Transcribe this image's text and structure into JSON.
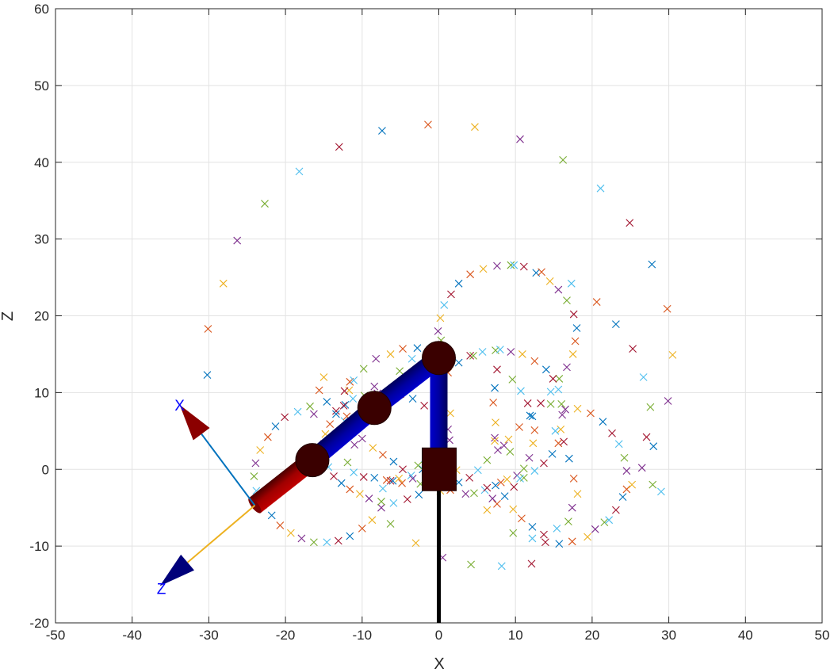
{
  "chart_data": {
    "type": "scatter",
    "title": "",
    "xlabel": "X",
    "ylabel": "Z",
    "xlim": [
      -50,
      50
    ],
    "ylim": [
      -20,
      60
    ],
    "xticks": [
      -50,
      -40,
      -30,
      -20,
      -10,
      0,
      10,
      20,
      30,
      40,
      50
    ],
    "yticks": [
      -20,
      -10,
      0,
      10,
      20,
      30,
      40,
      50,
      60
    ],
    "grid": true,
    "marker_colors": [
      "#0072bd",
      "#d95319",
      "#edb120",
      "#7e2f8e",
      "#77ac30",
      "#4dbeee",
      "#a2142f"
    ],
    "points": [
      [
        -30.2,
        12.3
      ],
      [
        -30.1,
        18.3
      ],
      [
        -28.1,
        24.2
      ],
      [
        -26.3,
        29.8
      ],
      [
        -22.7,
        34.6
      ],
      [
        -18.2,
        38.8
      ],
      [
        -13.0,
        42.0
      ],
      [
        -7.4,
        44.1
      ],
      [
        -1.4,
        44.9
      ],
      [
        4.7,
        44.6
      ],
      [
        10.6,
        43.0
      ],
      [
        16.2,
        40.3
      ],
      [
        21.1,
        36.6
      ],
      [
        24.9,
        32.1
      ],
      [
        27.8,
        26.7
      ],
      [
        29.8,
        20.9
      ],
      [
        30.5,
        14.9
      ],
      [
        29.9,
        8.9
      ],
      [
        27.6,
        8.1
      ],
      [
        26.7,
        12.0
      ],
      [
        25.3,
        15.7
      ],
      [
        23.1,
        18.9
      ],
      [
        20.6,
        21.8
      ],
      [
        0.2,
        19.7
      ],
      [
        -0.1,
        18.0
      ],
      [
        0.3,
        16.8
      ],
      [
        0.7,
        21.4
      ],
      [
        1.6,
        22.8
      ],
      [
        2.6,
        24.2
      ],
      [
        4.1,
        25.4
      ],
      [
        5.8,
        26.1
      ],
      [
        7.6,
        26.5
      ],
      [
        9.4,
        26.6
      ],
      [
        9.8,
        26.6
      ],
      [
        11.1,
        26.4
      ],
      [
        12.7,
        25.6
      ],
      [
        13.4,
        25.7
      ],
      [
        14.5,
        24.5
      ],
      [
        15.6,
        23.4
      ],
      [
        16.7,
        22.0
      ],
      [
        17.3,
        24.2
      ],
      [
        17.6,
        20.2
      ],
      [
        18.0,
        18.4
      ],
      [
        17.8,
        16.7
      ],
      [
        17.5,
        15.0
      ],
      [
        16.7,
        13.3
      ],
      [
        15.7,
        11.8
      ],
      [
        14.6,
        10.1
      ],
      [
        13.3,
        8.6
      ],
      [
        11.9,
        7.0
      ],
      [
        10.5,
        5.5
      ],
      [
        9.1,
        3.9
      ],
      [
        7.7,
        2.5
      ],
      [
        6.3,
        1.2
      ],
      [
        5.1,
        -0.1
      ],
      [
        4.0,
        -1.1
      ],
      [
        2.6,
        -1.7
      ],
      [
        1.5,
        -2.7
      ],
      [
        0.2,
        -2.8
      ],
      [
        -1.3,
        -1.9
      ],
      [
        -2.4,
        -1.9
      ],
      [
        -3.6,
        -0.8
      ],
      [
        -4.7,
        0.0
      ],
      [
        -5.9,
        1.0
      ],
      [
        -7.3,
        1.9
      ],
      [
        -8.6,
        2.8
      ],
      [
        -10.0,
        4.0
      ],
      [
        -11.2,
        5.1
      ],
      [
        -12.3,
        6.3
      ],
      [
        -13.4,
        7.6
      ],
      [
        -14.6,
        8.8
      ],
      [
        -15.6,
        10.3
      ],
      [
        -15.0,
        12.0
      ],
      [
        -16.3,
        7.2
      ],
      [
        -16.8,
        8.2
      ],
      [
        -18.4,
        7.5
      ],
      [
        -20.1,
        6.8
      ],
      [
        -21.3,
        5.6
      ],
      [
        -22.3,
        4.2
      ],
      [
        -23.3,
        2.5
      ],
      [
        -23.9,
        0.8
      ],
      [
        -24.1,
        -0.9
      ],
      [
        -23.8,
        -2.8
      ],
      [
        -22.9,
        -4.6
      ],
      [
        -21.8,
        -6.0
      ],
      [
        -20.7,
        -7.3
      ],
      [
        -19.3,
        -8.3
      ],
      [
        -17.9,
        -9.0
      ],
      [
        -16.3,
        -9.5
      ],
      [
        -14.6,
        -9.5
      ],
      [
        -13.1,
        -9.3
      ],
      [
        -11.6,
        -8.7
      ],
      [
        -10.0,
        -7.7
      ],
      [
        -8.7,
        -6.6
      ],
      [
        -7.5,
        -5.0
      ],
      [
        -6.3,
        -7.1
      ],
      [
        -7.3,
        -2.5
      ],
      [
        -6.3,
        -1.5
      ],
      [
        -6.0,
        -1.5
      ],
      [
        -4.8,
        -1.8
      ],
      [
        -3.0,
        -9.6
      ],
      [
        0.5,
        -11.5
      ],
      [
        4.2,
        -12.4
      ],
      [
        8.2,
        -12.6
      ],
      [
        12.1,
        -12.3
      ],
      [
        -2.1,
        0.0
      ],
      [
        -1.6,
        -0.5
      ],
      [
        2.3,
        -0.1
      ],
      [
        3.5,
        -3.2
      ],
      [
        4.6,
        -3.1
      ],
      [
        6.0,
        -2.7
      ],
      [
        6.3,
        -2.4
      ],
      [
        7.4,
        -2.1
      ],
      [
        8.1,
        -1.7
      ],
      [
        8.9,
        -1.3
      ],
      [
        10.2,
        -0.8
      ],
      [
        11.1,
        -1.1
      ],
      [
        12.5,
        -0.2
      ],
      [
        13.7,
        0.8
      ],
      [
        14.8,
        2.0
      ],
      [
        15.6,
        3.4
      ],
      [
        15.9,
        5.2
      ],
      [
        16.1,
        7.1
      ],
      [
        16.0,
        8.5
      ],
      [
        15.6,
        10.4
      ],
      [
        14.9,
        11.8
      ],
      [
        14.0,
        13.0
      ],
      [
        12.5,
        14.1
      ],
      [
        10.9,
        15.0
      ],
      [
        9.4,
        15.3
      ],
      [
        7.4,
        15.5
      ],
      [
        5.7,
        15.3
      ],
      [
        4.1,
        14.8
      ],
      [
        2.6,
        13.9
      ],
      [
        1.2,
        12.6
      ],
      [
        1.5,
        7.3
      ],
      [
        1.2,
        5.2
      ],
      [
        4.5,
        14.8
      ],
      [
        8.0,
        15.6
      ],
      [
        7.6,
        13.0
      ],
      [
        7.3,
        10.6
      ],
      [
        7.1,
        8.7
      ],
      [
        7.4,
        6.1
      ],
      [
        7.3,
        4.1
      ],
      [
        9.6,
        11.7
      ],
      [
        10.7,
        10.2
      ],
      [
        11.6,
        8.6
      ],
      [
        12.2,
        6.9
      ],
      [
        12.5,
        5.1
      ],
      [
        12.3,
        3.4
      ],
      [
        11.8,
        1.5
      ],
      [
        11.1,
        0.1
      ],
      [
        10.6,
        -1.2
      ],
      [
        9.8,
        -2.3
      ],
      [
        8.6,
        -3.5
      ],
      [
        7.6,
        -4.5
      ],
      [
        6.3,
        -5.3
      ],
      [
        7.0,
        -3.8
      ],
      [
        9.7,
        -8.3
      ],
      [
        12.2,
        -9.0
      ],
      [
        13.9,
        -9.5
      ],
      [
        15.7,
        -9.7
      ],
      [
        17.4,
        -9.4
      ],
      [
        19.4,
        -8.8
      ],
      [
        20.4,
        -7.8
      ],
      [
        21.6,
        -6.9
      ],
      [
        22.2,
        -6.6
      ],
      [
        23.1,
        -5.3
      ],
      [
        24.0,
        -3.6
      ],
      [
        24.5,
        -2.6
      ],
      [
        25.2,
        -2.0
      ],
      [
        24.5,
        -0.2
      ],
      [
        24.2,
        1.5
      ],
      [
        23.5,
        3.3
      ],
      [
        22.6,
        4.7
      ],
      [
        21.4,
        6.2
      ],
      [
        19.8,
        7.3
      ],
      [
        18.1,
        7.9
      ],
      [
        16.5,
        7.8
      ],
      [
        14.6,
        8.5
      ],
      [
        15.2,
        5.0
      ],
      [
        16.3,
        3.6
      ],
      [
        17.0,
        1.4
      ],
      [
        17.6,
        -1.2
      ],
      [
        18.1,
        -3.2
      ],
      [
        17.4,
        -5.0
      ],
      [
        16.9,
        -6.8
      ],
      [
        15.4,
        -7.7
      ],
      [
        13.7,
        -8.5
      ],
      [
        12.2,
        -7.5
      ],
      [
        10.8,
        -6.4
      ],
      [
        9.7,
        -5.2
      ],
      [
        26.5,
        0.2
      ],
      [
        27.9,
        -2.0
      ],
      [
        29.0,
        -2.9
      ],
      [
        27.1,
        4.2
      ],
      [
        28.0,
        3.0
      ],
      [
        -11.6,
        11.4
      ],
      [
        -11.7,
        10.3
      ],
      [
        -8.4,
        10.8
      ],
      [
        -5.1,
        12.8
      ],
      [
        -3.5,
        14.4
      ],
      [
        -1.2,
        15.5
      ],
      [
        -2.8,
        15.8
      ],
      [
        -4.7,
        15.7
      ],
      [
        -6.3,
        15.0
      ],
      [
        -8.2,
        14.4
      ],
      [
        -9.8,
        13.1
      ],
      [
        -11.1,
        11.6
      ],
      [
        -12.3,
        10.2
      ],
      [
        -12.2,
        8.4
      ],
      [
        -12.0,
        6.9
      ],
      [
        -11.9,
        5.4
      ],
      [
        -11.0,
        3.2
      ],
      [
        -11.9,
        0.9
      ],
      [
        -11.1,
        -0.4
      ],
      [
        -9.8,
        -1.0
      ],
      [
        -8.4,
        -1.1
      ],
      [
        -6.8,
        -1.4
      ],
      [
        -5.2,
        -1.2
      ],
      [
        -3.4,
        -1.2
      ],
      [
        -2.7,
        0.5
      ],
      [
        -1.8,
        0.6
      ],
      [
        -0.3,
        -0.6
      ],
      [
        0.0,
        -1.3
      ],
      [
        1.3,
        0.5
      ],
      [
        1.7,
        1.8
      ],
      [
        1.4,
        3.8
      ],
      [
        0.6,
        5.4
      ],
      [
        -0.4,
        7.0
      ],
      [
        -1.9,
        8.3
      ],
      [
        -3.4,
        9.2
      ],
      [
        -5.0,
        9.8
      ],
      [
        -6.6,
        10.0
      ],
      [
        -8.0,
        9.9
      ],
      [
        -9.7,
        9.6
      ],
      [
        -11.2,
        9.2
      ],
      [
        -12.4,
        8.3
      ],
      [
        -13.4,
        7.2
      ],
      [
        -14.2,
        5.9
      ],
      [
        -14.8,
        4.6
      ],
      [
        -15.0,
        3.3
      ],
      [
        -14.8,
        1.6
      ],
      [
        -14.4,
        0.3
      ],
      [
        -13.7,
        -0.9
      ],
      [
        -12.7,
        -1.8
      ],
      [
        -11.6,
        -2.6
      ],
      [
        -10.3,
        -3.2
      ],
      [
        -9.1,
        -3.8
      ],
      [
        -7.5,
        -4.2
      ],
      [
        -5.9,
        -4.4
      ],
      [
        -4.1,
        -3.9
      ],
      [
        -2.6,
        -3.3
      ],
      [
        -1.0,
        -2.2
      ],
      [
        7.3,
        3.7
      ],
      [
        8.5,
        3.1
      ],
      [
        9.3,
        2.3
      ]
    ],
    "arm_links": [
      {
        "from": [
          0,
          -20
        ],
        "to": [
          0,
          0
        ]
      },
      {
        "from": [
          0,
          0
        ],
        "to": [
          0,
          14.5
        ]
      },
      {
        "from": [
          0,
          14.5
        ],
        "to": [
          -8.4,
          8.0
        ]
      },
      {
        "from": [
          -8.4,
          8.0
        ],
        "to": [
          -16.5,
          1.2
        ]
      },
      {
        "from": [
          -16.5,
          1.2
        ],
        "to": [
          -24.0,
          -4.7
        ]
      }
    ],
    "joints": [
      [
        0,
        14.5
      ],
      [
        -8.4,
        8.0
      ],
      [
        -16.5,
        1.2
      ]
    ],
    "base": [
      0,
      0
    ],
    "frame": {
      "origin": [
        -24.0,
        -4.7
      ],
      "x_axis_end": [
        -33.8,
        8.4
      ],
      "z_axis_end": [
        -36.4,
        -15.2
      ],
      "x_label": "X",
      "z_label": "Z"
    }
  }
}
